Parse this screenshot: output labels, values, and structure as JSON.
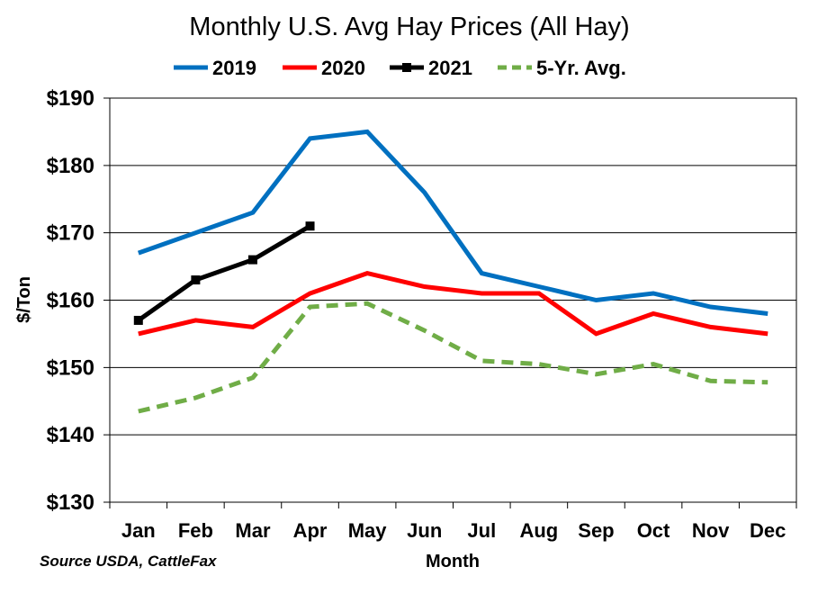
{
  "chart_data": {
    "type": "line",
    "title": "Monthly U.S. Avg Hay Prices (All Hay)",
    "xlabel": "Month",
    "ylabel": "$/Ton",
    "source": "Source USDA, CattleFax",
    "categories": [
      "Jan",
      "Feb",
      "Mar",
      "Apr",
      "May",
      "Jun",
      "Jul",
      "Aug",
      "Sep",
      "Oct",
      "Nov",
      "Dec"
    ],
    "ylim": [
      130,
      190
    ],
    "yticks": [
      130,
      140,
      150,
      160,
      170,
      180,
      190
    ],
    "ytick_labels": [
      "$130",
      "$140",
      "$150",
      "$160",
      "$170",
      "$180",
      "$190"
    ],
    "grid": true,
    "legend_position": "top",
    "series": [
      {
        "name": "2019",
        "color": "#0070C0",
        "style": "solid",
        "markers": false,
        "values": [
          167,
          170,
          173,
          184,
          185,
          176,
          164,
          162,
          160,
          161,
          159,
          158
        ]
      },
      {
        "name": "2020",
        "color": "#FF0000",
        "style": "solid",
        "markers": false,
        "values": [
          155,
          157,
          156,
          161,
          164,
          162,
          161,
          161,
          155,
          158,
          156,
          155
        ]
      },
      {
        "name": "2021",
        "color": "#000000",
        "style": "solid",
        "markers": true,
        "values": [
          157,
          163,
          166,
          171,
          null,
          null,
          null,
          null,
          null,
          null,
          null,
          null
        ]
      },
      {
        "name": "5-Yr. Avg.",
        "color": "#70AD47",
        "style": "dashed",
        "markers": false,
        "values": [
          143.5,
          145.5,
          148.5,
          159,
          159.5,
          155.5,
          151,
          150.5,
          149,
          150.5,
          148,
          147.8
        ]
      }
    ]
  }
}
